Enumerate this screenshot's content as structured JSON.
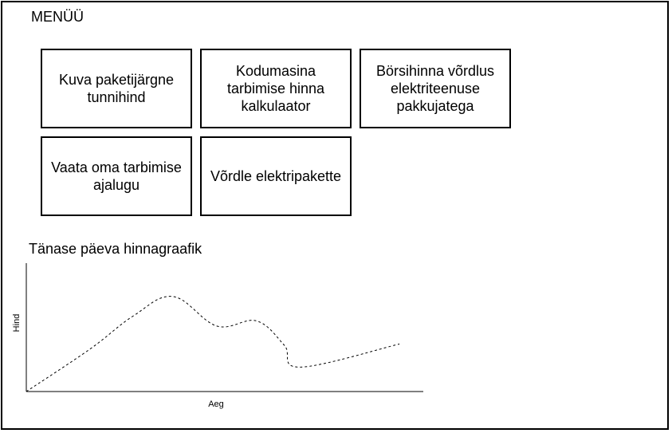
{
  "menu": {
    "title": "MENÜÜ",
    "items": [
      {
        "label": "Kuva paketijärgne tunnihind"
      },
      {
        "label": "Kodumasina tarbimise hinna kalkulaator"
      },
      {
        "label": "Börsihinna võrdlus elektriteenuse pakkujatega"
      },
      {
        "label": "Vaata oma tarbimise ajalugu"
      },
      {
        "label": "Võrdle elektripakette"
      }
    ]
  },
  "graph": {
    "title": "Tänase päeva hinnagraafik"
  },
  "chart_data": {
    "type": "line",
    "title": "Tänase päeva hinnagraafik",
    "xlabel": "Aeg",
    "ylabel": "Hind",
    "grid": false,
    "line_style": "dashed",
    "xlim": [
      0,
      100
    ],
    "ylim": [
      0,
      100
    ],
    "x": [
      0,
      16,
      27,
      37,
      48,
      58,
      65,
      69,
      94
    ],
    "values": [
      0,
      33,
      59,
      74,
      51,
      55,
      36,
      19,
      37
    ]
  }
}
